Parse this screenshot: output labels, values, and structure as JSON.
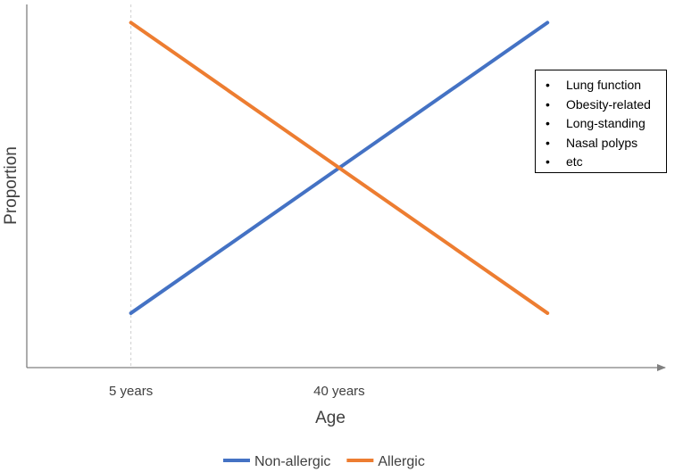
{
  "chart_data": {
    "type": "line",
    "xlabel": "Age",
    "ylabel": "Proportion",
    "xticks": [
      {
        "label": "5 years",
        "position": 1
      },
      {
        "label": "40 years",
        "position": 3
      }
    ],
    "x": [
      1,
      3,
      5
    ],
    "xlim": [
      0,
      6.13
    ],
    "ylim": [
      0,
      1
    ],
    "series": [
      {
        "name": "Non-allergic",
        "color": "#4472C4",
        "values": [
          0.15,
          0.55,
          0.95
        ]
      },
      {
        "name": "Allergic",
        "color": "#ED7D31",
        "values": [
          0.95,
          0.55,
          0.15
        ]
      }
    ],
    "reference_line_x": 1,
    "annotation_box": [
      "Lung function",
      "Obesity-related",
      "Long-standing",
      "Nasal polyps",
      "etc"
    ],
    "legend_position": "bottom",
    "grid": false
  }
}
